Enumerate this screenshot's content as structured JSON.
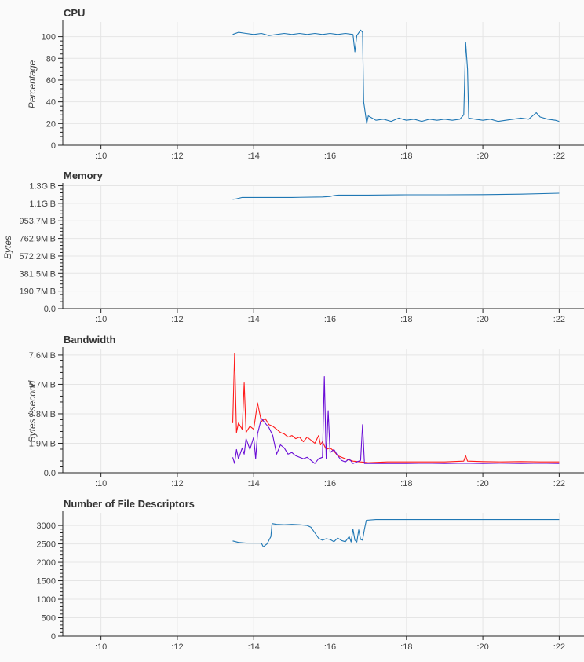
{
  "chart_data": [
    {
      "type": "line",
      "title": "CPU",
      "ylabel": "Percentage",
      "ylim": [
        0,
        112
      ],
      "yticks": [
        {
          "v": 0,
          "label": "0"
        },
        {
          "v": 20,
          "label": "20"
        },
        {
          "v": 40,
          "label": "40"
        },
        {
          "v": 60,
          "label": "60"
        },
        {
          "v": 80,
          "label": "80"
        },
        {
          "v": 100,
          "label": "100"
        }
      ],
      "xlim": [
        9,
        22.65
      ],
      "xticks": [
        {
          "v": 10,
          "label": ":10"
        },
        {
          "v": 12,
          "label": ":12"
        },
        {
          "v": 14,
          "label": ":14"
        },
        {
          "v": 16,
          "label": ":16"
        },
        {
          "v": 18,
          "label": ":18"
        },
        {
          "v": 20,
          "label": ":20"
        },
        {
          "v": 22,
          "label": ":22"
        }
      ],
      "series": [
        {
          "color": "#1f77b4",
          "points": [
            [
              13.45,
              102
            ],
            [
              13.6,
              104
            ],
            [
              13.8,
              103
            ],
            [
              14.0,
              102
            ],
            [
              14.2,
              103
            ],
            [
              14.4,
              101
            ],
            [
              14.6,
              102
            ],
            [
              14.8,
              103
            ],
            [
              15.0,
              102
            ],
            [
              15.2,
              103
            ],
            [
              15.4,
              102
            ],
            [
              15.6,
              103
            ],
            [
              15.8,
              102
            ],
            [
              16.0,
              103
            ],
            [
              16.2,
              102
            ],
            [
              16.4,
              103
            ],
            [
              16.6,
              102
            ],
            [
              16.65,
              86
            ],
            [
              16.7,
              101
            ],
            [
              16.8,
              106
            ],
            [
              16.85,
              104
            ],
            [
              16.88,
              40
            ],
            [
              16.92,
              30
            ],
            [
              16.96,
              20
            ],
            [
              17.0,
              27
            ],
            [
              17.2,
              23
            ],
            [
              17.4,
              24
            ],
            [
              17.6,
              22
            ],
            [
              17.8,
              25
            ],
            [
              18.0,
              23
            ],
            [
              18.2,
              24
            ],
            [
              18.4,
              22
            ],
            [
              18.6,
              24
            ],
            [
              18.8,
              23
            ],
            [
              19.0,
              24
            ],
            [
              19.2,
              23
            ],
            [
              19.4,
              24
            ],
            [
              19.5,
              28
            ],
            [
              19.55,
              95
            ],
            [
              19.6,
              70
            ],
            [
              19.63,
              25
            ],
            [
              19.8,
              24
            ],
            [
              20.0,
              23
            ],
            [
              20.2,
              24
            ],
            [
              20.4,
              22
            ],
            [
              20.6,
              23
            ],
            [
              20.8,
              24
            ],
            [
              21.0,
              25
            ],
            [
              21.2,
              24
            ],
            [
              21.4,
              30
            ],
            [
              21.5,
              26
            ],
            [
              21.7,
              24
            ],
            [
              21.9,
              23
            ],
            [
              22.0,
              22
            ]
          ]
        }
      ]
    },
    {
      "type": "line",
      "title": "Memory",
      "ylabel": "Bytes",
      "ylim": [
        0,
        1.3
      ],
      "yticks": [
        {
          "v": 0,
          "label": "0.0"
        },
        {
          "v": 0.18626,
          "label": "190.7MiB"
        },
        {
          "v": 0.37253,
          "label": "381.5MiB"
        },
        {
          "v": 0.55879,
          "label": "572.2MiB"
        },
        {
          "v": 0.74506,
          "label": "762.9MiB"
        },
        {
          "v": 0.93132,
          "label": "953.7MiB"
        },
        {
          "v": 1.11759,
          "label": "1.1GiB"
        },
        {
          "v": 1.30385,
          "label": "1.3GiB"
        }
      ],
      "xlim": [
        9,
        22.65
      ],
      "xticks": [
        {
          "v": 10,
          "label": ":10"
        },
        {
          "v": 12,
          "label": ":12"
        },
        {
          "v": 14,
          "label": ":14"
        },
        {
          "v": 16,
          "label": ":16"
        },
        {
          "v": 18,
          "label": ":18"
        },
        {
          "v": 20,
          "label": ":20"
        },
        {
          "v": 22,
          "label": ":22"
        }
      ],
      "series": [
        {
          "color": "#1f77b4",
          "points": [
            [
              13.45,
              1.16
            ],
            [
              13.55,
              1.165
            ],
            [
              13.7,
              1.18
            ],
            [
              14.0,
              1.18
            ],
            [
              15.0,
              1.18
            ],
            [
              15.8,
              1.185
            ],
            [
              16.0,
              1.19
            ],
            [
              16.1,
              1.2
            ],
            [
              16.2,
              1.205
            ],
            [
              17.0,
              1.205
            ],
            [
              18.0,
              1.208
            ],
            [
              19.0,
              1.208
            ],
            [
              20.0,
              1.21
            ],
            [
              21.0,
              1.215
            ],
            [
              22.0,
              1.225
            ]
          ]
        }
      ]
    },
    {
      "type": "line",
      "title": "Bandwidth",
      "ylabel": "Bytes / second",
      "ylim": [
        0,
        7.9
      ],
      "yticks": [
        {
          "v": 0,
          "label": "0.0"
        },
        {
          "v": 1.9,
          "label": "1.9MiB"
        },
        {
          "v": 3.8,
          "label": "3.8MiB"
        },
        {
          "v": 5.7,
          "label": "5.7MiB"
        },
        {
          "v": 7.6,
          "label": "7.6MiB"
        }
      ],
      "xlim": [
        9,
        22.65
      ],
      "xticks": [
        {
          "v": 10,
          "label": ":10"
        },
        {
          "v": 12,
          "label": ":12"
        },
        {
          "v": 14,
          "label": ":14"
        },
        {
          "v": 16,
          "label": ":16"
        },
        {
          "v": 18,
          "label": ":18"
        },
        {
          "v": 20,
          "label": ":20"
        },
        {
          "v": 22,
          "label": ":22"
        }
      ],
      "series": [
        {
          "color": "#ff1a1a",
          "points": [
            [
              13.45,
              3.2
            ],
            [
              13.5,
              7.7
            ],
            [
              13.55,
              2.6
            ],
            [
              13.6,
              3.2
            ],
            [
              13.7,
              2.8
            ],
            [
              13.75,
              5.8
            ],
            [
              13.8,
              2.6
            ],
            [
              13.9,
              3.0
            ],
            [
              14.0,
              2.8
            ],
            [
              14.1,
              4.5
            ],
            [
              14.2,
              3.3
            ],
            [
              14.3,
              3.5
            ],
            [
              14.4,
              3.1
            ],
            [
              14.5,
              3.0
            ],
            [
              14.6,
              2.8
            ],
            [
              14.7,
              2.6
            ],
            [
              14.8,
              2.5
            ],
            [
              14.9,
              2.3
            ],
            [
              15.0,
              2.4
            ],
            [
              15.1,
              2.2
            ],
            [
              15.2,
              2.3
            ],
            [
              15.3,
              2.0
            ],
            [
              15.4,
              2.3
            ],
            [
              15.5,
              2.1
            ],
            [
              15.6,
              1.9
            ],
            [
              15.7,
              2.4
            ],
            [
              15.75,
              1.8
            ],
            [
              15.8,
              2.0
            ],
            [
              15.9,
              1.5
            ],
            [
              16.0,
              1.6
            ],
            [
              16.1,
              1.4
            ],
            [
              16.2,
              1.1
            ],
            [
              16.3,
              1.0
            ],
            [
              16.4,
              0.9
            ],
            [
              16.6,
              0.75
            ],
            [
              16.8,
              0.7
            ],
            [
              17.0,
              0.65
            ],
            [
              17.5,
              0.7
            ],
            [
              18.0,
              0.7
            ],
            [
              18.5,
              0.7
            ],
            [
              19.0,
              0.7
            ],
            [
              19.5,
              0.75
            ],
            [
              19.55,
              1.1
            ],
            [
              19.6,
              0.75
            ],
            [
              20.0,
              0.72
            ],
            [
              20.5,
              0.7
            ],
            [
              21.0,
              0.72
            ],
            [
              21.5,
              0.7
            ],
            [
              22.0,
              0.7
            ]
          ]
        },
        {
          "color": "#6a0dd6",
          "points": [
            [
              13.45,
              1.0
            ],
            [
              13.5,
              0.6
            ],
            [
              13.55,
              1.5
            ],
            [
              13.6,
              0.9
            ],
            [
              13.7,
              1.6
            ],
            [
              13.75,
              1.2
            ],
            [
              13.8,
              2.2
            ],
            [
              13.9,
              1.5
            ],
            [
              14.0,
              2.3
            ],
            [
              14.05,
              0.9
            ],
            [
              14.1,
              2.5
            ],
            [
              14.2,
              3.5
            ],
            [
              14.3,
              3.2
            ],
            [
              14.4,
              2.9
            ],
            [
              14.5,
              2.4
            ],
            [
              14.6,
              1.2
            ],
            [
              14.7,
              1.8
            ],
            [
              14.8,
              1.6
            ],
            [
              14.9,
              1.2
            ],
            [
              15.0,
              1.3
            ],
            [
              15.1,
              1.1
            ],
            [
              15.2,
              1.0
            ],
            [
              15.3,
              0.9
            ],
            [
              15.4,
              1.0
            ],
            [
              15.5,
              0.8
            ],
            [
              15.6,
              0.6
            ],
            [
              15.7,
              0.9
            ],
            [
              15.8,
              1.0
            ],
            [
              15.85,
              6.2
            ],
            [
              15.9,
              0.9
            ],
            [
              15.95,
              4.0
            ],
            [
              16.0,
              1.3
            ],
            [
              16.1,
              1.5
            ],
            [
              16.2,
              1.1
            ],
            [
              16.3,
              0.8
            ],
            [
              16.4,
              0.7
            ],
            [
              16.5,
              0.9
            ],
            [
              16.6,
              0.6
            ],
            [
              16.7,
              0.7
            ],
            [
              16.8,
              0.8
            ],
            [
              16.85,
              3.1
            ],
            [
              16.9,
              0.6
            ],
            [
              17.0,
              0.6
            ],
            [
              17.5,
              0.6
            ],
            [
              18.0,
              0.6
            ],
            [
              18.5,
              0.62
            ],
            [
              19.0,
              0.6
            ],
            [
              19.5,
              0.62
            ],
            [
              20.0,
              0.6
            ],
            [
              20.5,
              0.62
            ],
            [
              21.0,
              0.6
            ],
            [
              21.5,
              0.62
            ],
            [
              22.0,
              0.6
            ]
          ]
        }
      ]
    },
    {
      "type": "line",
      "title": "Number of File Descriptors",
      "ylabel": "",
      "ylim": [
        0,
        3300
      ],
      "yticks": [
        {
          "v": 0,
          "label": "0"
        },
        {
          "v": 500,
          "label": "500"
        },
        {
          "v": 1000,
          "label": "1000"
        },
        {
          "v": 1500,
          "label": "1500"
        },
        {
          "v": 2000,
          "label": "2000"
        },
        {
          "v": 2500,
          "label": "2500"
        },
        {
          "v": 3000,
          "label": "3000"
        }
      ],
      "xlim": [
        9,
        22.65
      ],
      "xticks": [
        {
          "v": 10,
          "label": ":10"
        },
        {
          "v": 12,
          "label": ":12"
        },
        {
          "v": 14,
          "label": ":14"
        },
        {
          "v": 16,
          "label": ":16"
        },
        {
          "v": 18,
          "label": ":18"
        },
        {
          "v": 20,
          "label": ":20"
        },
        {
          "v": 22,
          "label": ":22"
        }
      ],
      "series": [
        {
          "color": "#1f77b4",
          "points": [
            [
              13.45,
              2580
            ],
            [
              13.6,
              2540
            ],
            [
              13.8,
              2520
            ],
            [
              14.0,
              2520
            ],
            [
              14.2,
              2520
            ],
            [
              14.25,
              2420
            ],
            [
              14.35,
              2500
            ],
            [
              14.45,
              2700
            ],
            [
              14.48,
              3050
            ],
            [
              14.6,
              3030
            ],
            [
              14.8,
              3020
            ],
            [
              15.0,
              3030
            ],
            [
              15.2,
              3020
            ],
            [
              15.4,
              3000
            ],
            [
              15.5,
              2950
            ],
            [
              15.6,
              2800
            ],
            [
              15.7,
              2650
            ],
            [
              15.8,
              2600
            ],
            [
              15.9,
              2640
            ],
            [
              16.0,
              2620
            ],
            [
              16.1,
              2560
            ],
            [
              16.2,
              2660
            ],
            [
              16.3,
              2590
            ],
            [
              16.4,
              2560
            ],
            [
              16.5,
              2700
            ],
            [
              16.55,
              2550
            ],
            [
              16.6,
              2900
            ],
            [
              16.65,
              2600
            ],
            [
              16.7,
              2550
            ],
            [
              16.75,
              2880
            ],
            [
              16.8,
              2620
            ],
            [
              16.85,
              2600
            ],
            [
              16.9,
              2900
            ],
            [
              16.95,
              3140
            ],
            [
              17.2,
              3160
            ],
            [
              18.0,
              3160
            ],
            [
              19.0,
              3160
            ],
            [
              20.0,
              3160
            ],
            [
              21.0,
              3160
            ],
            [
              22.0,
              3160
            ]
          ]
        }
      ]
    }
  ]
}
